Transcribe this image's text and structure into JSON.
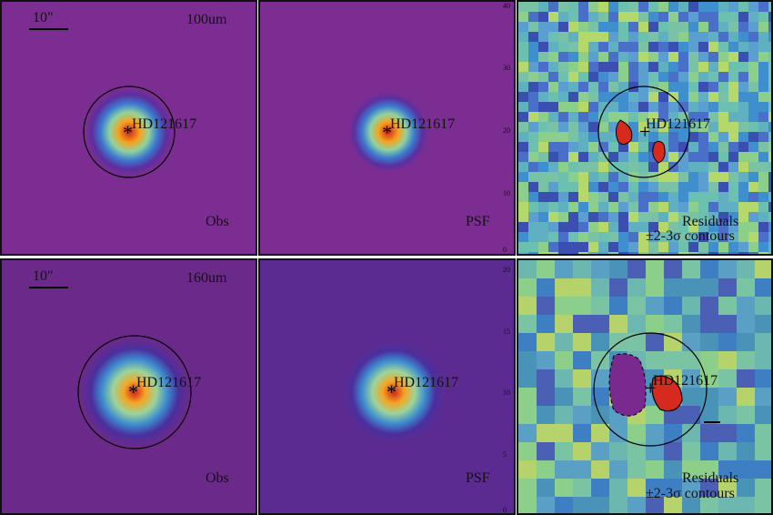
{
  "panels": [
    {
      "id": "p100-obs",
      "band": "100um",
      "corner": "Obs",
      "scale": "10\"",
      "target": "HD121617",
      "marker": "*",
      "kind": "obs",
      "ticks_right": [
        ""
      ]
    },
    {
      "id": "p100-psf",
      "corner": "PSF",
      "target": "HD121617",
      "marker": "*",
      "kind": "psf",
      "ticks_right": [
        "40",
        "30",
        "20",
        "10",
        "0"
      ]
    },
    {
      "id": "p100-res",
      "corner_line1": "Residuals",
      "corner_line2": "±2-3σ contours",
      "target": "HD121617",
      "marker": "+",
      "kind": "res"
    },
    {
      "id": "p160-obs",
      "band": "160um",
      "corner": "Obs",
      "scale": "10\"",
      "target": "HD121617",
      "marker": "*",
      "kind": "obs"
    },
    {
      "id": "p160-psf",
      "corner": "PSF",
      "target": "HD121617",
      "marker": "*",
      "kind": "psf",
      "ticks_right": [
        "20",
        "15",
        "10",
        "5",
        "0"
      ]
    },
    {
      "id": "p160-res",
      "corner_line1": "Residuals",
      "corner_line2": "±2-3σ contours",
      "target": "HD121617",
      "marker": "+",
      "kind": "res"
    }
  ],
  "colors": {
    "background_purple": "#7a2a8f",
    "ring": "#000000",
    "core": "#d62a1e",
    "mid": "#f5a623",
    "outer": "#4fb0c6"
  }
}
